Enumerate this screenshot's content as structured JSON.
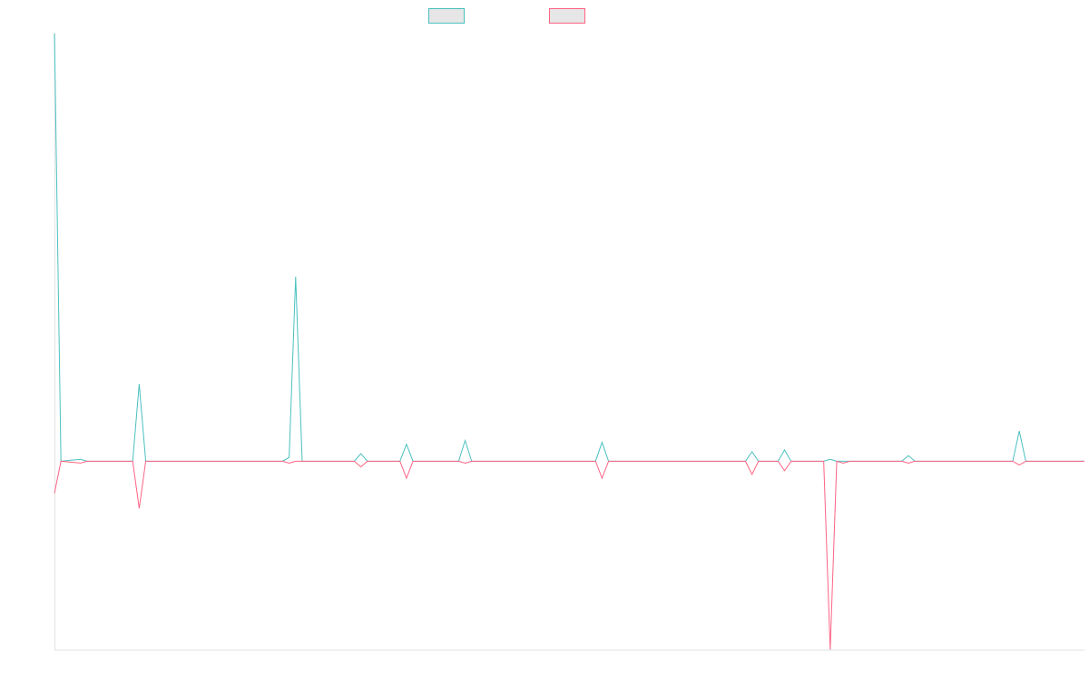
{
  "chart_data": {
    "type": "line",
    "title": "",
    "xlabel": "",
    "ylabel": "",
    "grid": false,
    "legend_position": "top-center",
    "legend_labels_visible": false,
    "ylim": [
      -1.0,
      2.27
    ],
    "n_points": 159,
    "series": [
      {
        "color": "#4bc0c0",
        "fill": "#e6e6e6",
        "points": [
          [
            0,
            2.27
          ],
          [
            1,
            0
          ],
          [
            4,
            0.01
          ],
          [
            5,
            0
          ],
          [
            12,
            0
          ],
          [
            13,
            0.41
          ],
          [
            14,
            0
          ],
          [
            35,
            0
          ],
          [
            36,
            0.02
          ],
          [
            37,
            0.98
          ],
          [
            38,
            0
          ],
          [
            46,
            0
          ],
          [
            47,
            0.04
          ],
          [
            48,
            0
          ],
          [
            53,
            0
          ],
          [
            54,
            0.09
          ],
          [
            55,
            0
          ],
          [
            62,
            0
          ],
          [
            63,
            0.11
          ],
          [
            64,
            0
          ],
          [
            83,
            0
          ],
          [
            84,
            0.1
          ],
          [
            85,
            0
          ],
          [
            106,
            0
          ],
          [
            107,
            0.05
          ],
          [
            108,
            0
          ],
          [
            111,
            0
          ],
          [
            112,
            0.06
          ],
          [
            113,
            0
          ],
          [
            118,
            0
          ],
          [
            119,
            0.01
          ],
          [
            120,
            0
          ],
          [
            130,
            0
          ],
          [
            131,
            0.03
          ],
          [
            132,
            0
          ],
          [
            147,
            0
          ],
          [
            148,
            0.16
          ],
          [
            149,
            0
          ],
          [
            158,
            0
          ]
        ]
      },
      {
        "color": "#ff6384",
        "fill": "#e6e6e6",
        "points": [
          [
            0,
            -0.17
          ],
          [
            1,
            0
          ],
          [
            4,
            -0.01
          ],
          [
            5,
            0
          ],
          [
            12,
            0
          ],
          [
            13,
            -0.25
          ],
          [
            14,
            0
          ],
          [
            35,
            0
          ],
          [
            36,
            -0.01
          ],
          [
            37,
            0
          ],
          [
            46,
            0
          ],
          [
            47,
            -0.03
          ],
          [
            48,
            0
          ],
          [
            53,
            0
          ],
          [
            54,
            -0.09
          ],
          [
            55,
            0
          ],
          [
            62,
            0
          ],
          [
            63,
            -0.01
          ],
          [
            64,
            0
          ],
          [
            83,
            0
          ],
          [
            84,
            -0.09
          ],
          [
            85,
            0
          ],
          [
            106,
            0
          ],
          [
            107,
            -0.07
          ],
          [
            108,
            0
          ],
          [
            111,
            0
          ],
          [
            112,
            -0.05
          ],
          [
            113,
            0
          ],
          [
            118,
            0
          ],
          [
            119,
            -1.0
          ],
          [
            120,
            0
          ],
          [
            121,
            -0.01
          ],
          [
            122,
            0
          ],
          [
            130,
            0
          ],
          [
            131,
            -0.01
          ],
          [
            132,
            0
          ],
          [
            147,
            0
          ],
          [
            148,
            -0.02
          ],
          [
            149,
            0
          ],
          [
            158,
            0
          ]
        ]
      }
    ]
  }
}
